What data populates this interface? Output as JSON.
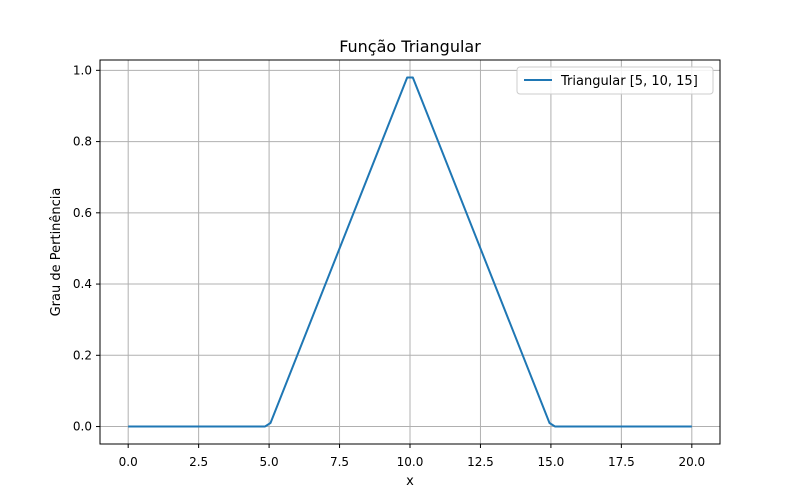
{
  "chart_data": {
    "type": "line",
    "title": "Função Triangular",
    "xlabel": "x",
    "ylabel": "Grau de Pertinência",
    "xlim": [
      -1,
      21
    ],
    "ylim": [
      -0.049,
      1.029
    ],
    "xticks": [
      0,
      2.5,
      5,
      7.5,
      10,
      12.5,
      15,
      17.5,
      20
    ],
    "xtick_labels": [
      "0.0",
      "2.5",
      "5.0",
      "7.5",
      "10.0",
      "12.5",
      "15.0",
      "17.5",
      "20.0"
    ],
    "yticks": [
      0,
      0.2,
      0.4,
      0.6,
      0.8,
      1.0
    ],
    "ytick_labels": [
      "0.0",
      "0.2",
      "0.4",
      "0.6",
      "0.8",
      "1.0"
    ],
    "grid": true,
    "legend_position": "top-right",
    "series": [
      {
        "name": "Triangular [5, 10, 15]",
        "color": "#1f77b4",
        "x": [
          0,
          4.85,
          5.05,
          9.9,
          10.1,
          14.95,
          15.15,
          20
        ],
        "y": [
          0,
          0,
          0.01,
          0.98,
          0.98,
          0.01,
          0,
          0
        ]
      }
    ]
  }
}
